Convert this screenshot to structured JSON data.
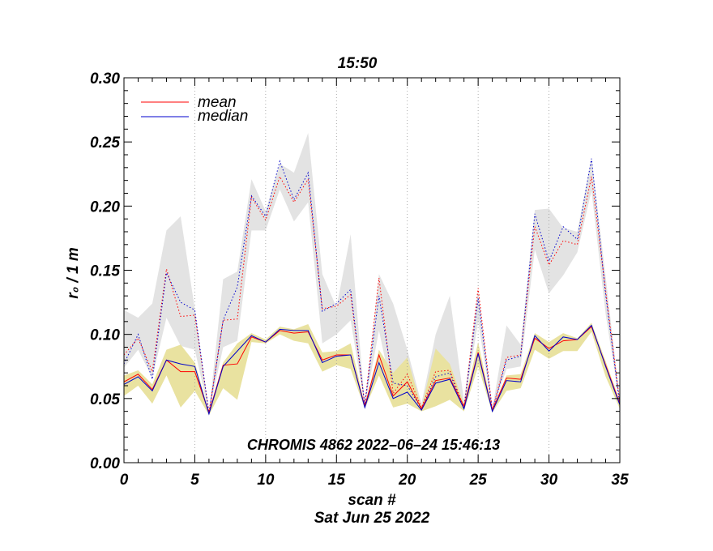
{
  "chart_data": {
    "type": "line",
    "title": "15:50",
    "xlabel": "scan #",
    "ylabel": "r₀ / 1 m",
    "date_label": "Sat Jun 25 2022",
    "annotation": "CHROMIS 4862 2022–06–24 15:46:13",
    "xlim": [
      0,
      35
    ],
    "ylim": [
      0.0,
      0.3
    ],
    "x_ticks": [
      0,
      5,
      10,
      15,
      20,
      25,
      30,
      35
    ],
    "x_tick_labels": [
      "0",
      "5",
      "10",
      "15",
      "20",
      "25",
      "30",
      "35"
    ],
    "y_ticks": [
      0.0,
      0.05,
      0.1,
      0.15,
      0.2,
      0.25,
      0.3
    ],
    "y_tick_labels": [
      "0.00",
      "0.05",
      "0.10",
      "0.15",
      "0.20",
      "0.25",
      "0.30"
    ],
    "x_grid": true,
    "legend_position": "top-left",
    "x": [
      0,
      1,
      2,
      3,
      4,
      5,
      6,
      7,
      8,
      9,
      10,
      11,
      12,
      13,
      14,
      15,
      16,
      17,
      18,
      19,
      20,
      21,
      22,
      23,
      24,
      25,
      26,
      27,
      28,
      29,
      30,
      31,
      32,
      33,
      34,
      35
    ],
    "series": [
      {
        "name": "mean",
        "color": "#ff0000",
        "style": "solid",
        "legend": true,
        "values": [
          0.063,
          0.069,
          0.057,
          0.08,
          0.071,
          0.071,
          0.039,
          0.076,
          0.077,
          0.098,
          0.094,
          0.103,
          0.101,
          0.102,
          0.08,
          0.084,
          0.084,
          0.044,
          0.084,
          0.052,
          0.063,
          0.042,
          0.064,
          0.066,
          0.044,
          0.086,
          0.041,
          0.066,
          0.065,
          0.097,
          0.089,
          0.095,
          0.096,
          0.106,
          0.076,
          0.046
        ]
      },
      {
        "name": "median",
        "color": "#0000cc",
        "style": "solid",
        "legend": true,
        "values": [
          0.061,
          0.067,
          0.056,
          0.08,
          0.077,
          0.075,
          0.038,
          0.075,
          0.087,
          0.099,
          0.094,
          0.104,
          0.103,
          0.103,
          0.078,
          0.083,
          0.084,
          0.043,
          0.078,
          0.05,
          0.055,
          0.041,
          0.062,
          0.065,
          0.042,
          0.085,
          0.04,
          0.064,
          0.063,
          0.099,
          0.087,
          0.098,
          0.096,
          0.107,
          0.075,
          0.045
        ]
      },
      {
        "name": "mean (dotted)",
        "color": "#ff0000",
        "style": "dotted",
        "legend": false,
        "values": [
          0.084,
          0.097,
          0.071,
          0.151,
          0.114,
          0.115,
          0.039,
          0.111,
          0.112,
          0.207,
          0.189,
          0.223,
          0.203,
          0.221,
          0.12,
          0.122,
          0.131,
          0.045,
          0.144,
          0.054,
          0.069,
          0.043,
          0.071,
          0.072,
          0.043,
          0.136,
          0.041,
          0.082,
          0.084,
          0.184,
          0.154,
          0.173,
          0.17,
          0.223,
          0.134,
          0.047
        ]
      },
      {
        "name": "median (dotted)",
        "color": "#0000cc",
        "style": "dotted",
        "legend": false,
        "values": [
          0.077,
          0.1,
          0.065,
          0.148,
          0.125,
          0.119,
          0.038,
          0.111,
          0.137,
          0.208,
          0.192,
          0.235,
          0.205,
          0.226,
          0.118,
          0.124,
          0.135,
          0.045,
          0.13,
          0.062,
          0.06,
          0.042,
          0.067,
          0.07,
          0.042,
          0.128,
          0.04,
          0.08,
          0.083,
          0.194,
          0.157,
          0.184,
          0.174,
          0.237,
          0.131,
          0.045
        ]
      }
    ],
    "bands": [
      {
        "name": "grey band",
        "color": "#e3e3e3",
        "lower": [
          0.074,
          0.088,
          0.066,
          0.113,
          0.091,
          0.088,
          0.039,
          0.09,
          0.095,
          0.181,
          0.181,
          0.213,
          0.188,
          0.203,
          0.093,
          0.1,
          0.111,
          0.044,
          0.103,
          0.051,
          0.055,
          0.042,
          0.061,
          0.064,
          0.042,
          0.11,
          0.04,
          0.073,
          0.075,
          0.166,
          0.132,
          0.146,
          0.164,
          0.212,
          0.116,
          0.045
        ],
        "upper": [
          0.119,
          0.113,
          0.124,
          0.181,
          0.192,
          0.12,
          0.039,
          0.143,
          0.149,
          0.221,
          0.196,
          0.233,
          0.226,
          0.257,
          0.147,
          0.121,
          0.178,
          0.045,
          0.147,
          0.124,
          0.088,
          0.046,
          0.1,
          0.13,
          0.048,
          0.135,
          0.042,
          0.107,
          0.092,
          0.197,
          0.198,
          0.183,
          0.18,
          0.238,
          0.145,
          0.049
        ]
      },
      {
        "name": "yellow band",
        "color": "#e9e2a0",
        "lower": [
          0.052,
          0.06,
          0.046,
          0.068,
          0.043,
          0.056,
          0.037,
          0.058,
          0.049,
          0.094,
          0.093,
          0.1,
          0.095,
          0.093,
          0.071,
          0.076,
          0.073,
          0.042,
          0.068,
          0.043,
          0.046,
          0.04,
          0.044,
          0.049,
          0.04,
          0.075,
          0.039,
          0.056,
          0.058,
          0.088,
          0.081,
          0.087,
          0.087,
          0.102,
          0.067,
          0.042
        ],
        "upper": [
          0.068,
          0.072,
          0.061,
          0.088,
          0.092,
          0.078,
          0.04,
          0.078,
          0.093,
          0.101,
          0.096,
          0.106,
          0.104,
          0.108,
          0.086,
          0.087,
          0.093,
          0.045,
          0.088,
          0.07,
          0.082,
          0.043,
          0.089,
          0.077,
          0.046,
          0.094,
          0.042,
          0.068,
          0.069,
          0.101,
          0.094,
          0.101,
          0.097,
          0.109,
          0.079,
          0.048
        ]
      }
    ]
  }
}
